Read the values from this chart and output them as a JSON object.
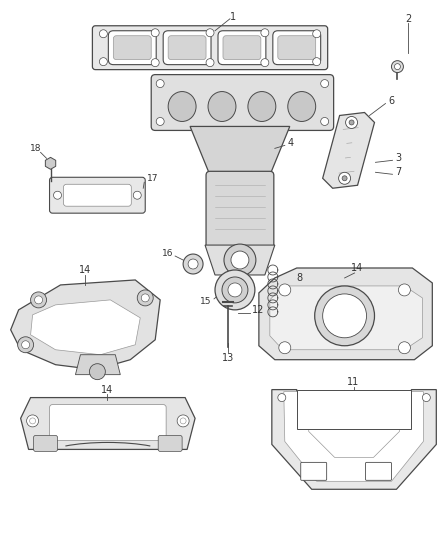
{
  "background_color": "#ffffff",
  "line_color": "#4a4a4a",
  "label_color": "#333333",
  "fig_width": 4.38,
  "fig_height": 5.33,
  "dpi": 100
}
